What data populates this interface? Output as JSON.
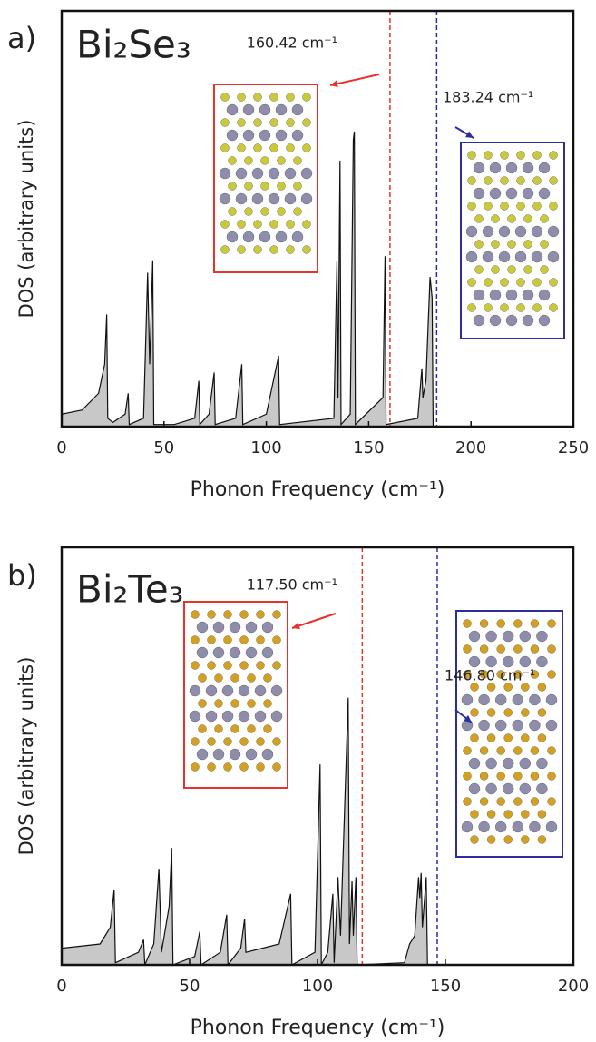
{
  "chart_data": [
    {
      "type": "area",
      "panel": "a)",
      "title": "Bi₂Se₃",
      "x_label": "Phonon Frequency (cm⁻¹)",
      "y_label": "DOS (arbitrary units)",
      "color": "#c8c8c8",
      "x": [
        0,
        10,
        18,
        21,
        22,
        22.5,
        25,
        31,
        32.5,
        33,
        40,
        42,
        43,
        44.5,
        45,
        55,
        65,
        67,
        67.5,
        72,
        74.5,
        75,
        85,
        88,
        88.5,
        100,
        106,
        106.5,
        133,
        134.5,
        135,
        136,
        136.5,
        141,
        142.5,
        143,
        143.5,
        157,
        158,
        158.5,
        174,
        176,
        176.5,
        178,
        180,
        181,
        181.5,
        250
      ],
      "values": [
        3,
        4,
        8,
        15,
        27,
        2,
        1,
        3,
        8,
        0.5,
        2,
        37,
        15,
        40,
        0.5,
        0.5,
        2,
        11,
        0.5,
        3,
        13,
        0.5,
        2,
        15,
        0.5,
        3,
        17,
        0.5,
        2,
        40,
        7,
        64,
        0.5,
        3,
        69,
        71,
        0.5,
        7,
        41,
        0.5,
        2,
        14,
        7,
        11,
        36,
        31,
        0,
        0
      ],
      "xlim": [
        0,
        250
      ],
      "ylim": [
        0,
        100
      ],
      "xticks": [
        0,
        50,
        100,
        150,
        200,
        250
      ],
      "vlines": [
        {
          "value": 160.42,
          "label": "160.42 cm⁻¹",
          "color": "#e8322a"
        },
        {
          "value": 183.24,
          "label": "183.24 cm⁻¹",
          "color": "#2b2f9e"
        }
      ]
    },
    {
      "type": "area",
      "panel": "b)",
      "title": "Bi₂Te₃",
      "x_label": "Phonon Frequency (cm⁻¹)",
      "y_label": "DOS (arbitrary units)",
      "color": "#c8c8c8",
      "x": [
        0,
        15,
        19,
        20.5,
        21,
        30,
        32,
        32.5,
        36,
        38,
        39,
        42,
        43,
        43.5,
        52,
        54,
        54.5,
        62,
        64.5,
        65,
        70,
        71.5,
        72,
        85,
        89.5,
        90,
        99,
        101,
        101.5,
        104,
        106,
        106.5,
        108,
        109,
        112,
        112.5,
        113.5,
        114,
        115,
        115.5,
        134,
        136,
        138,
        139.5,
        140,
        140.5,
        141,
        142.5,
        143,
        200
      ],
      "values": [
        4,
        5,
        9,
        18,
        0.5,
        3,
        6,
        0,
        5,
        23,
        3,
        14,
        28,
        0,
        2,
        8,
        0,
        3,
        12,
        0,
        4,
        11,
        3,
        5,
        17,
        0,
        3,
        48,
        0,
        3,
        17,
        0.5,
        21,
        7,
        64,
        5,
        20,
        7,
        21,
        0,
        0.5,
        5,
        7,
        21,
        16,
        22,
        9,
        21,
        0,
        0
      ],
      "xlim": [
        0,
        200
      ],
      "ylim": [
        0,
        100
      ],
      "xticks": [
        0,
        50,
        100,
        150,
        200
      ],
      "vlines": [
        {
          "value": 117.5,
          "label": "117.50 cm⁻¹",
          "color": "#e8322a"
        },
        {
          "value": 146.8,
          "label": "146.80 cm⁻¹",
          "color": "#2b2f9e"
        }
      ]
    }
  ]
}
